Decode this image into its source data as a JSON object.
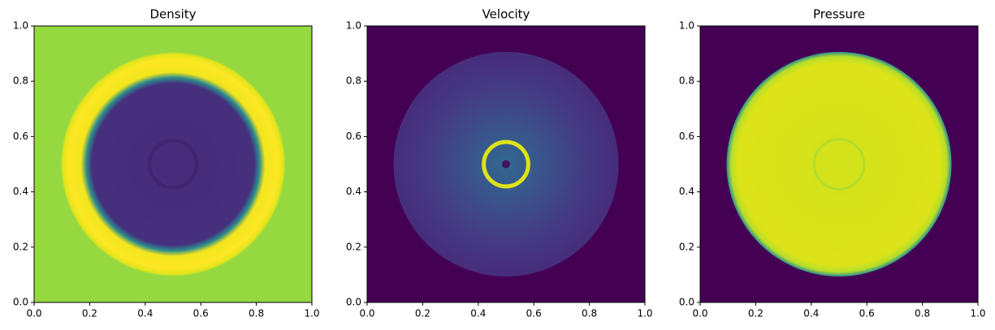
{
  "chart_data": [
    {
      "type": "image",
      "title": "Density",
      "xlim": [
        0,
        1
      ],
      "ylim": [
        0,
        1
      ],
      "xticks": [
        {
          "value": 0,
          "label": "0.0"
        },
        {
          "value": 0.2,
          "label": "0.2"
        },
        {
          "value": 0.4,
          "label": "0.4"
        },
        {
          "value": 0.6,
          "label": "0.6"
        },
        {
          "value": 0.8,
          "label": "0.8"
        },
        {
          "value": 1,
          "label": "1.0"
        }
      ],
      "yticks": [
        {
          "value": 0,
          "label": "0.0"
        },
        {
          "value": 0.2,
          "label": "0.2"
        },
        {
          "value": 0.4,
          "label": "0.4"
        },
        {
          "value": 0.6,
          "label": "0.6"
        },
        {
          "value": 0.8,
          "label": "0.8"
        },
        {
          "value": 1,
          "label": "1.0"
        }
      ]
    },
    {
      "type": "image",
      "title": "Velocity",
      "xlim": [
        0,
        1
      ],
      "ylim": [
        0,
        1
      ],
      "xticks": [
        {
          "value": 0,
          "label": "0.0"
        },
        {
          "value": 0.2,
          "label": "0.2"
        },
        {
          "value": 0.4,
          "label": "0.4"
        },
        {
          "value": 0.6,
          "label": "0.6"
        },
        {
          "value": 0.8,
          "label": "0.8"
        },
        {
          "value": 1,
          "label": "1.0"
        }
      ],
      "yticks": [
        {
          "value": 0,
          "label": "0.0"
        },
        {
          "value": 0.2,
          "label": "0.2"
        },
        {
          "value": 0.4,
          "label": "0.4"
        },
        {
          "value": 0.6,
          "label": "0.6"
        },
        {
          "value": 0.8,
          "label": "0.8"
        },
        {
          "value": 1,
          "label": "1.0"
        }
      ]
    },
    {
      "type": "image",
      "title": "Pressure",
      "xlim": [
        0,
        1
      ],
      "ylim": [
        0,
        1
      ],
      "xticks": [
        {
          "value": 0,
          "label": "0.0"
        },
        {
          "value": 0.2,
          "label": "0.2"
        },
        {
          "value": 0.4,
          "label": "0.4"
        },
        {
          "value": 0.6,
          "label": "0.6"
        },
        {
          "value": 0.8,
          "label": "0.8"
        },
        {
          "value": 1,
          "label": "1.0"
        }
      ],
      "yticks": [
        {
          "value": 0,
          "label": "0.0"
        },
        {
          "value": 0.2,
          "label": "0.2"
        },
        {
          "value": 0.4,
          "label": "0.4"
        },
        {
          "value": 0.6,
          "label": "0.6"
        },
        {
          "value": 0.8,
          "label": "0.8"
        },
        {
          "value": 1,
          "label": "1.0"
        }
      ]
    }
  ]
}
